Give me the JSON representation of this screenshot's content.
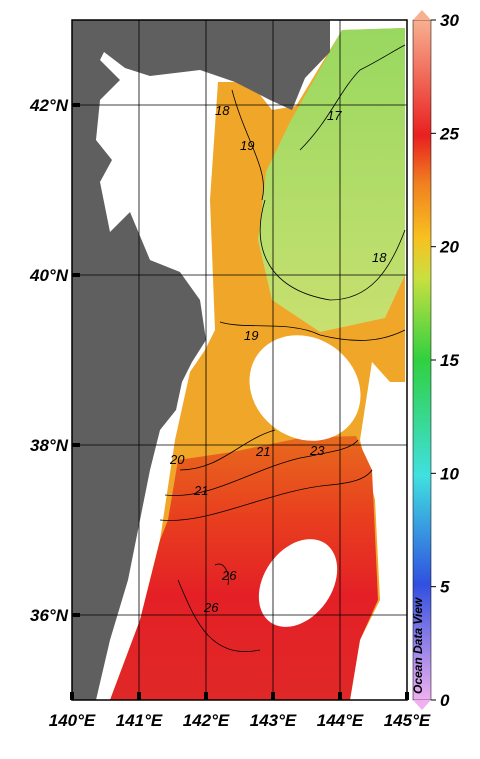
{
  "map": {
    "lon_ticks": [
      {
        "value": 140,
        "label": "140°E"
      },
      {
        "value": 141,
        "label": "141°E"
      },
      {
        "value": 142,
        "label": "142°E"
      },
      {
        "value": 143,
        "label": "143°E"
      },
      {
        "value": 144,
        "label": "144°E"
      },
      {
        "value": 145,
        "label": "145°E"
      }
    ],
    "lat_ticks": [
      {
        "value": 42,
        "label": "42°N"
      },
      {
        "value": 40,
        "label": "40°N"
      },
      {
        "value": 38,
        "label": "38°N"
      },
      {
        "value": 36,
        "label": "36°N"
      }
    ],
    "lonlim": [
      140,
      145
    ],
    "latlim": [
      35,
      43
    ],
    "contour_labels": [
      "18",
      "19",
      "17",
      "18",
      "19",
      "20",
      "21",
      "21",
      "23",
      "26",
      "26"
    ],
    "watermark": "Ocean Data View"
  },
  "colorbar": {
    "lim": [
      0,
      30
    ],
    "ticks": [
      0,
      5,
      10,
      15,
      20,
      25,
      30
    ]
  }
}
